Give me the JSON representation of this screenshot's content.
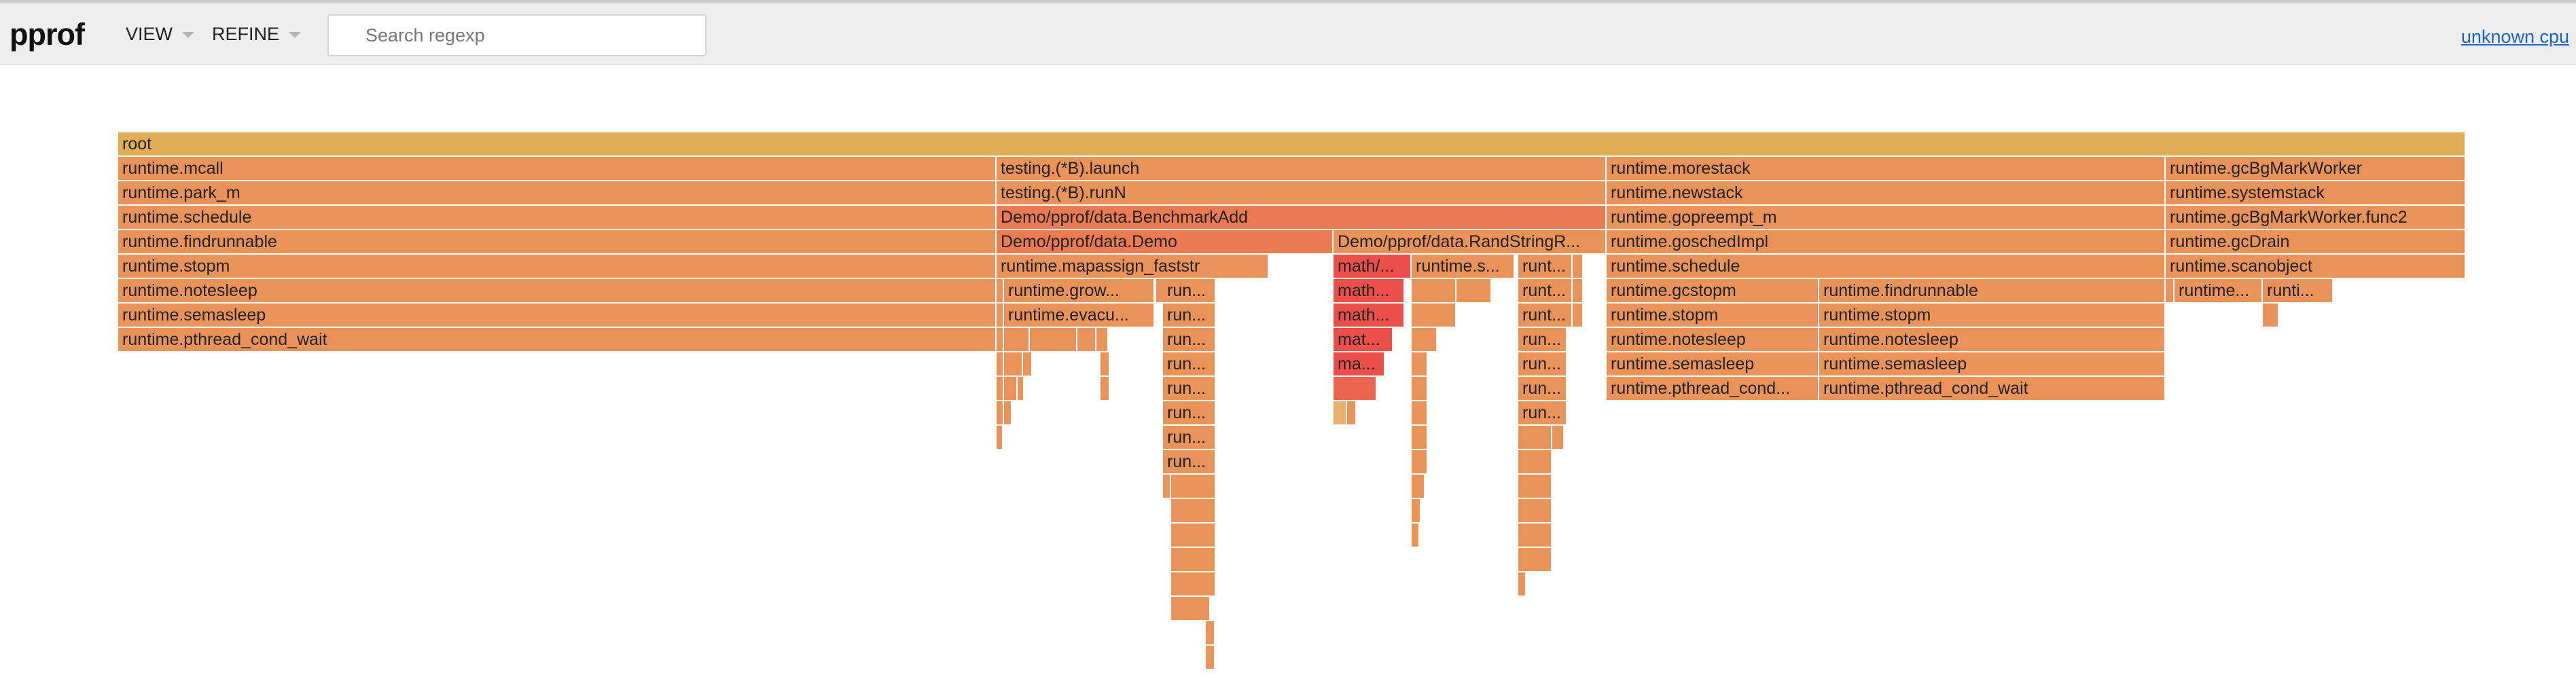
{
  "app": {
    "title": "pprof",
    "menus": [
      {
        "label": "VIEW"
      },
      {
        "label": "REFINE"
      }
    ],
    "search": {
      "placeholder": "Search regexp",
      "value": ""
    },
    "cpu_link": "unknown cpu"
  },
  "colors": {
    "root": "#e0ae59",
    "default": "#e9935a",
    "hot": "#eb7b52",
    "hotter": "#ec6551",
    "hottest": "#ec4e4a",
    "light": "#ebb06a"
  },
  "flame": {
    "frames": [
      {
        "label": "root"
      },
      {
        "label": "runtime.mcall"
      },
      {
        "label": "runtime.park_m"
      },
      {
        "label": "runtime.schedule"
      },
      {
        "label": "runtime.findrunnable"
      },
      {
        "label": "runtime.stopm"
      },
      {
        "label": "runtime.notesleep"
      },
      {
        "label": "runtime.semasleep"
      },
      {
        "label": "runtime.pthread_cond_wait"
      },
      {
        "label": "testing.(*B).launch"
      },
      {
        "label": "testing.(*B).runN"
      },
      {
        "label": "Demo/pprof/data.BenchmarkAdd"
      },
      {
        "label": "Demo/pprof/data.Demo"
      },
      {
        "label": "runtime.mapassign_faststr"
      },
      {
        "label": "runtime.grow..."
      },
      {
        "label": "runtime.evacu..."
      },
      {
        "label": "run..."
      },
      {
        "label": "run..."
      },
      {
        "label": "run..."
      },
      {
        "label": "run..."
      },
      {
        "label": "run..."
      },
      {
        "label": "run..."
      },
      {
        "label": "run..."
      },
      {
        "label": "run..."
      },
      {
        "label": "Demo/pprof/data.RandStringR..."
      },
      {
        "label": "math/..."
      },
      {
        "label": "math..."
      },
      {
        "label": "math..."
      },
      {
        "label": "mat..."
      },
      {
        "label": "ma..."
      },
      {
        "label": "runtime.s..."
      },
      {
        "label": "runt..."
      },
      {
        "label": "runt..."
      },
      {
        "label": "runt..."
      },
      {
        "label": "run..."
      },
      {
        "label": "run..."
      },
      {
        "label": "run..."
      },
      {
        "label": "run..."
      },
      {
        "label": "runtime.morestack"
      },
      {
        "label": "runtime.newstack"
      },
      {
        "label": "runtime.gopreempt_m"
      },
      {
        "label": "runtime.goschedImpl"
      },
      {
        "label": "runtime.schedule"
      },
      {
        "label": "runtime.gcstopm"
      },
      {
        "label": "runtime.stopm"
      },
      {
        "label": "runtime.notesleep"
      },
      {
        "label": "runtime.semasleep"
      },
      {
        "label": "runtime.pthread_cond..."
      },
      {
        "label": "runtime.findrunnable"
      },
      {
        "label": "runtime.stopm"
      },
      {
        "label": "runtime.notesleep"
      },
      {
        "label": "runtime.semasleep"
      },
      {
        "label": "runtime.pthread_cond_wait"
      },
      {
        "label": "runtime.gcBgMarkWorker"
      },
      {
        "label": "runtime.systemstack"
      },
      {
        "label": "runtime.gcBgMarkWorker.func2"
      },
      {
        "label": "runtime.gcDrain"
      },
      {
        "label": "runtime.scanobject"
      },
      {
        "label": "runtime..."
      },
      {
        "label": "runti..."
      }
    ]
  }
}
